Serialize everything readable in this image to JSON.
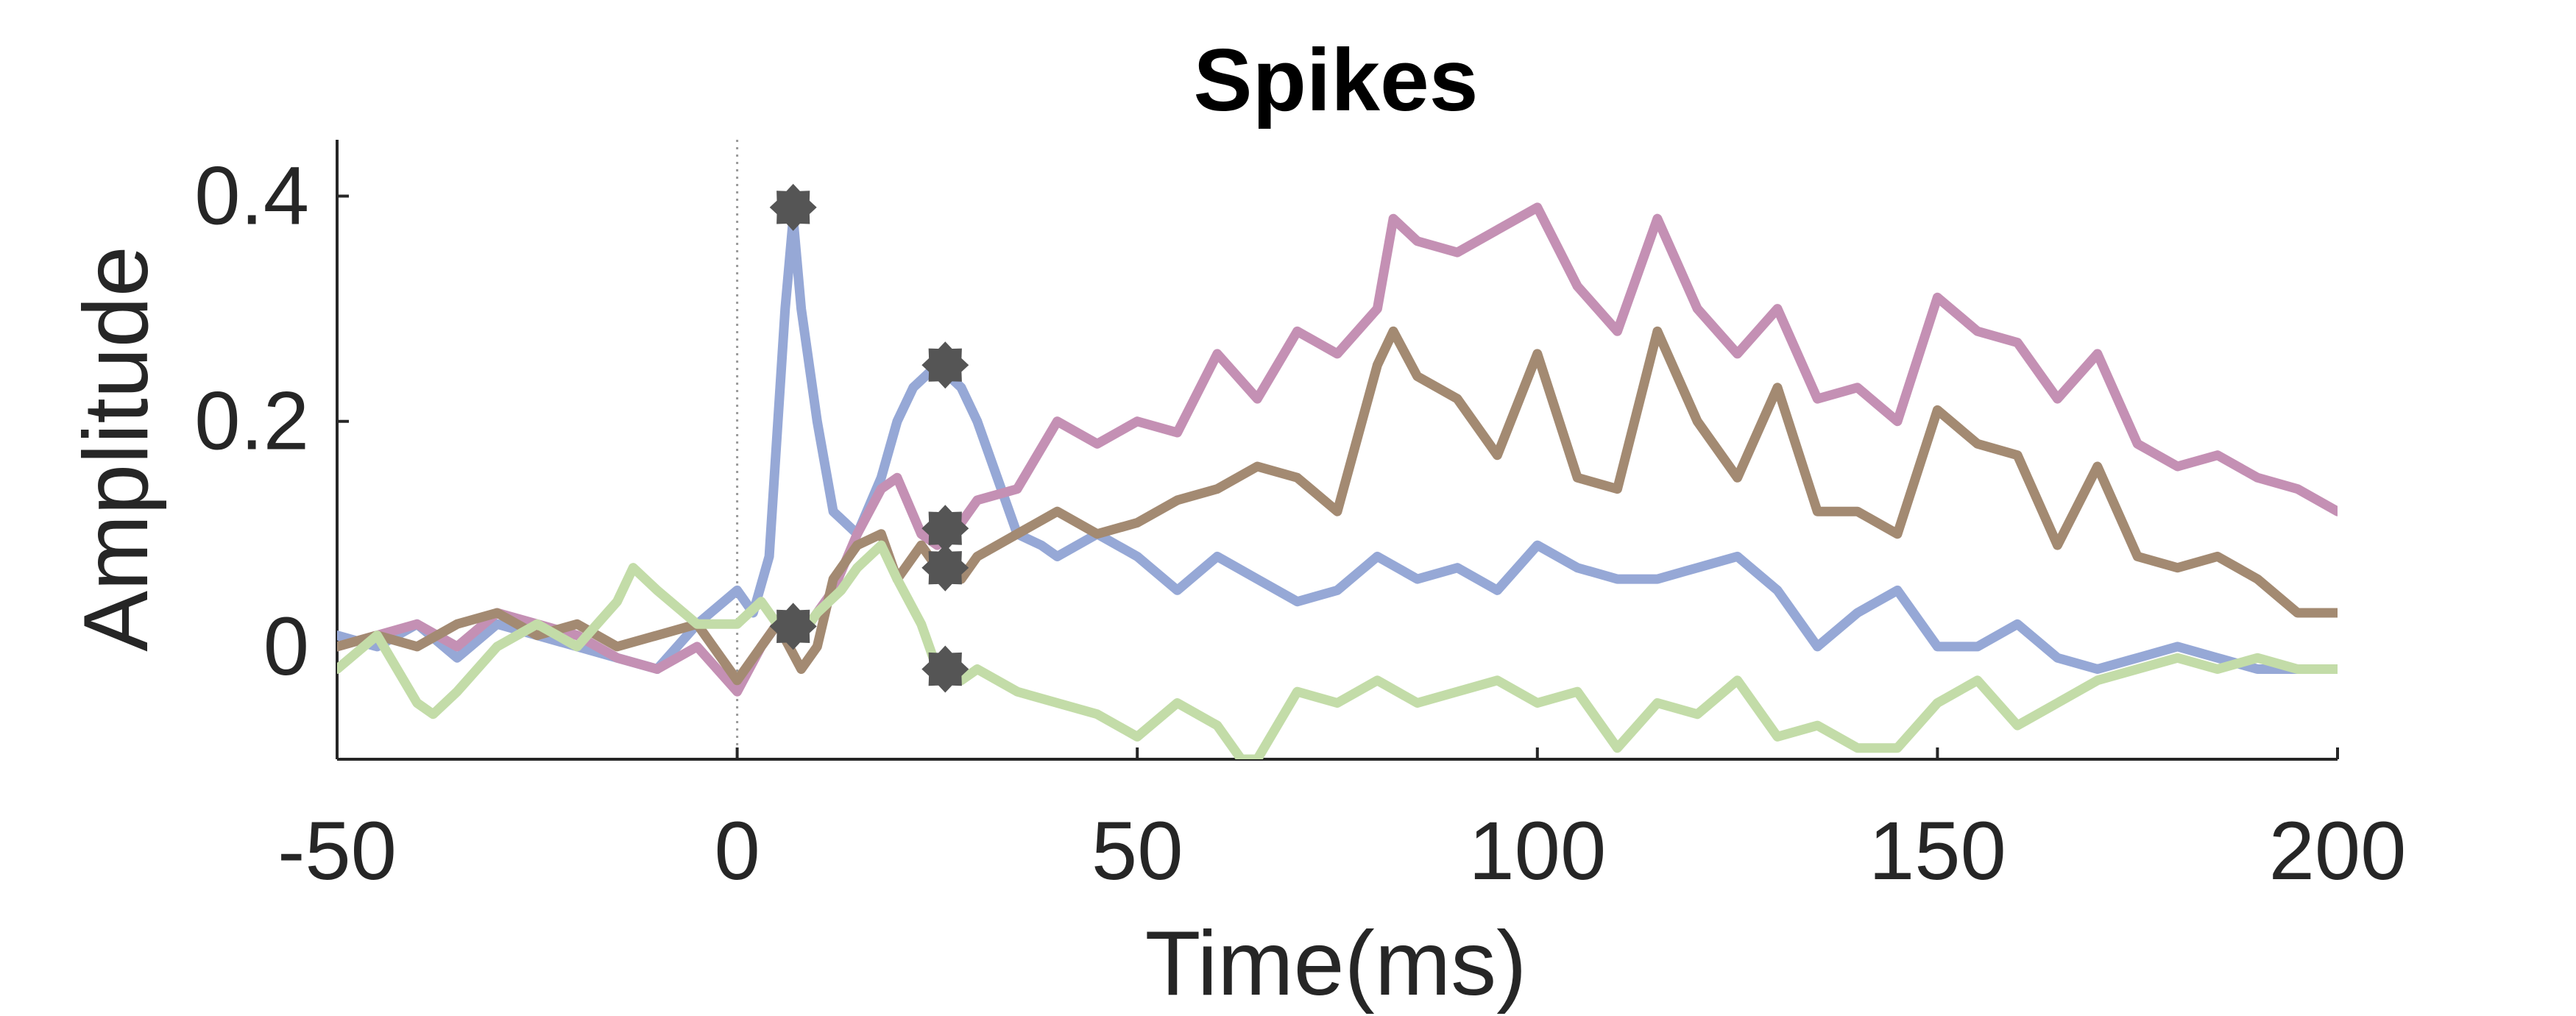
{
  "chart_data": {
    "type": "line",
    "title": "Spikes",
    "xlabel": "Time(ms)",
    "ylabel": "Amplitude",
    "xlim": [
      -50,
      200
    ],
    "ylim": [
      -0.1,
      0.45
    ],
    "xticks": [
      -50,
      0,
      50,
      100,
      150,
      200
    ],
    "xtick_labels": [
      "-50",
      "0",
      "50",
      "100",
      "150",
      "200"
    ],
    "yticks": [
      0,
      0.2,
      0.4
    ],
    "ytick_labels": [
      "0",
      "0.2",
      "0.4"
    ],
    "grid": false,
    "vertical_marker_x": 0,
    "series": [
      {
        "color": "#96a8d6",
        "x": [
          -50,
          -45,
          -40,
          -35,
          -30,
          -25,
          -20,
          -15,
          -10,
          -5,
          0,
          2,
          4,
          6,
          7,
          8,
          10,
          12,
          15,
          18,
          20,
          22,
          25,
          28,
          30,
          33,
          35,
          38,
          40,
          45,
          50,
          55,
          60,
          65,
          70,
          75,
          80,
          85,
          90,
          95,
          100,
          105,
          110,
          115,
          120,
          125,
          130,
          135,
          140,
          145,
          150,
          155,
          160,
          165,
          170,
          175,
          180,
          185,
          190,
          195,
          200
        ],
        "y": [
          0.01,
          0.0,
          0.02,
          -0.01,
          0.02,
          0.01,
          0.0,
          -0.01,
          -0.02,
          0.02,
          0.05,
          0.03,
          0.08,
          0.3,
          0.38,
          0.3,
          0.2,
          0.12,
          0.1,
          0.15,
          0.2,
          0.23,
          0.25,
          0.23,
          0.2,
          0.14,
          0.1,
          0.09,
          0.08,
          0.1,
          0.08,
          0.05,
          0.08,
          0.06,
          0.04,
          0.05,
          0.08,
          0.06,
          0.07,
          0.05,
          0.09,
          0.07,
          0.06,
          0.06,
          0.07,
          0.08,
          0.05,
          0.0,
          0.03,
          0.05,
          0.0,
          0.0,
          0.02,
          -0.01,
          -0.02,
          -0.01,
          0.0,
          -0.01,
          -0.02,
          -0.02,
          -0.02
        ]
      },
      {
        "color": "#c490b4",
        "x": [
          -50,
          -45,
          -40,
          -35,
          -30,
          -25,
          -20,
          -15,
          -10,
          -5,
          0,
          3,
          5,
          8,
          10,
          12,
          15,
          18,
          20,
          23,
          25,
          28,
          30,
          35,
          40,
          45,
          50,
          55,
          60,
          65,
          70,
          75,
          80,
          82,
          85,
          90,
          95,
          100,
          105,
          110,
          115,
          120,
          125,
          130,
          135,
          140,
          145,
          150,
          155,
          160,
          165,
          170,
          175,
          180,
          185,
          190,
          195,
          200
        ],
        "y": [
          0.0,
          0.01,
          0.02,
          0.0,
          0.03,
          0.02,
          0.01,
          -0.01,
          -0.02,
          0.0,
          -0.04,
          0.0,
          0.02,
          0.01,
          0.03,
          0.05,
          0.1,
          0.14,
          0.15,
          0.1,
          0.09,
          0.11,
          0.13,
          0.14,
          0.2,
          0.18,
          0.2,
          0.19,
          0.26,
          0.22,
          0.28,
          0.26,
          0.3,
          0.38,
          0.36,
          0.35,
          0.37,
          0.39,
          0.32,
          0.28,
          0.38,
          0.3,
          0.26,
          0.3,
          0.22,
          0.23,
          0.2,
          0.31,
          0.28,
          0.27,
          0.22,
          0.26,
          0.18,
          0.16,
          0.17,
          0.15,
          0.14,
          0.12
        ]
      },
      {
        "color": "#a38a72",
        "x": [
          -50,
          -45,
          -40,
          -35,
          -30,
          -25,
          -20,
          -15,
          -10,
          -5,
          0,
          3,
          5,
          8,
          10,
          12,
          15,
          18,
          20,
          23,
          25,
          28,
          30,
          35,
          40,
          45,
          50,
          55,
          60,
          65,
          70,
          75,
          80,
          82,
          85,
          90,
          95,
          100,
          105,
          110,
          115,
          120,
          125,
          130,
          135,
          140,
          145,
          150,
          155,
          160,
          165,
          170,
          175,
          180,
          185,
          190,
          195,
          200
        ],
        "y": [
          0.0,
          0.01,
          0.0,
          0.02,
          0.03,
          0.01,
          0.02,
          0.0,
          0.01,
          0.02,
          -0.03,
          0.0,
          0.02,
          -0.02,
          0.0,
          0.06,
          0.09,
          0.1,
          0.06,
          0.09,
          0.07,
          0.06,
          0.08,
          0.1,
          0.12,
          0.1,
          0.11,
          0.13,
          0.14,
          0.16,
          0.15,
          0.12,
          0.25,
          0.28,
          0.24,
          0.22,
          0.17,
          0.26,
          0.15,
          0.14,
          0.28,
          0.2,
          0.15,
          0.23,
          0.12,
          0.12,
          0.1,
          0.21,
          0.18,
          0.17,
          0.09,
          0.16,
          0.08,
          0.07,
          0.08,
          0.06,
          0.03,
          0.03
        ]
      },
      {
        "color": "#c3dca8",
        "x": [
          -50,
          -45,
          -40,
          -38,
          -35,
          -30,
          -25,
          -20,
          -15,
          -13,
          -10,
          -5,
          0,
          3,
          5,
          8,
          10,
          13,
          15,
          18,
          20,
          23,
          25,
          28,
          30,
          35,
          40,
          45,
          50,
          55,
          60,
          63,
          65,
          70,
          75,
          80,
          85,
          90,
          95,
          100,
          105,
          110,
          115,
          120,
          125,
          130,
          135,
          140,
          145,
          150,
          155,
          160,
          165,
          170,
          175,
          180,
          185,
          190,
          195,
          200
        ],
        "y": [
          -0.02,
          0.01,
          -0.05,
          -0.06,
          -0.04,
          0.0,
          0.02,
          0.0,
          0.04,
          0.07,
          0.05,
          0.02,
          0.02,
          0.04,
          0.02,
          0.01,
          0.03,
          0.05,
          0.07,
          0.09,
          0.06,
          0.02,
          -0.02,
          -0.03,
          -0.02,
          -0.04,
          -0.05,
          -0.06,
          -0.08,
          -0.05,
          -0.07,
          -0.1,
          -0.1,
          -0.04,
          -0.05,
          -0.03,
          -0.05,
          -0.04,
          -0.03,
          -0.05,
          -0.04,
          -0.09,
          -0.05,
          -0.06,
          -0.03,
          -0.08,
          -0.07,
          -0.09,
          -0.09,
          -0.05,
          -0.03,
          -0.07,
          -0.05,
          -0.03,
          -0.02,
          -0.01,
          -0.02,
          -0.01,
          -0.02,
          -0.02
        ]
      }
    ],
    "markers": {
      "color": "#555555",
      "points": [
        {
          "x": 7,
          "y": 0.39
        },
        {
          "x": 26,
          "y": 0.25
        },
        {
          "x": 26,
          "y": 0.105
        },
        {
          "x": 26,
          "y": 0.07
        },
        {
          "x": 7,
          "y": 0.018
        },
        {
          "x": 26,
          "y": -0.02
        }
      ]
    }
  }
}
